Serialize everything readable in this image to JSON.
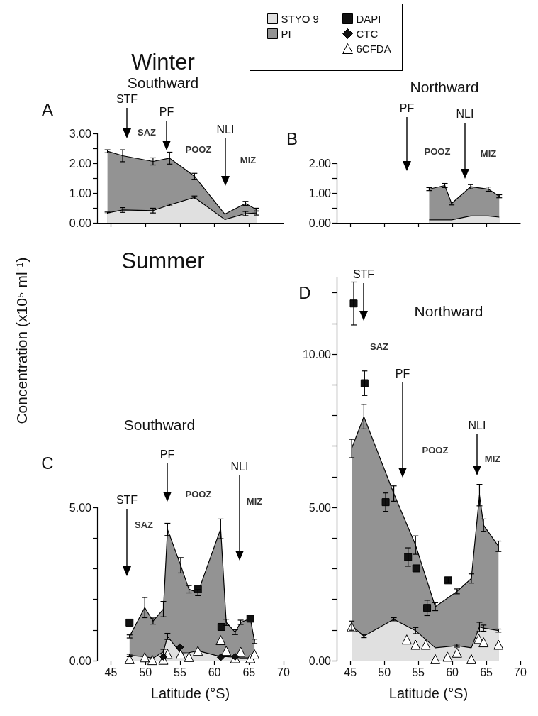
{
  "chart_data": [
    {
      "type": "area",
      "title": "Winter",
      "subtitle": "Southward",
      "ylabel": "Concentration (x10⁵ ml⁻¹)",
      "annotations": [
        "A",
        "STF",
        "PF",
        "NLI",
        "SAZ",
        "POOZ",
        "MIZ"
      ],
      "x": [
        44.5,
        46.7,
        51.1,
        53.5,
        57.1,
        61.5,
        64.5,
        66.1
      ],
      "series": [
        {
          "color": "#e0e0e0",
          "values": [
            0.33,
            0.43,
            0.41,
            0.6,
            0.85,
            0.11,
            0.31,
            0.33
          ],
          "errors": [
            0.03,
            0.08,
            0.08,
            0.03,
            0.05,
            null,
            0.07,
            0.07
          ]
        },
        {
          "color": "#939393",
          "values": [
            2.4,
            2.25,
            2.06,
            2.17,
            1.56,
            0.29,
            0.65,
            0.44
          ],
          "errors": [
            0.05,
            0.2,
            0.12,
            0.2,
            0.1,
            null,
            0.07,
            0.05
          ]
        }
      ],
      "xlim": [
        43,
        70
      ],
      "xticks": [
        45,
        50,
        55,
        60,
        65
      ],
      "ylim": [
        0,
        3
      ],
      "yticks": [
        {
          "value": 0,
          "label": "0.00"
        },
        {
          "value": 0.5,
          "label": null
        },
        {
          "value": 1,
          "label": "1.00"
        },
        {
          "value": 1.5,
          "label": null
        },
        {
          "value": 2,
          "label": "2.00"
        },
        {
          "value": 2.5,
          "label": null
        },
        {
          "value": 3,
          "label": "3.00"
        }
      ],
      "tick_labels": "y"
    },
    {
      "type": "area",
      "subtitle": "Northward",
      "annotations": [
        "B",
        "PF",
        "NLI",
        "POOZ",
        "MIZ"
      ],
      "x": [
        56.6,
        58.9,
        59.9,
        62.7,
        65.3,
        66.9
      ],
      "series": [
        {
          "color": "#e0e0e0",
          "values": [
            0.1,
            0.1,
            0.1,
            0.23,
            0.23,
            0.19
          ]
        },
        {
          "color": "#939393",
          "values": [
            1.13,
            1.25,
            0.65,
            1.21,
            1.13,
            0.89
          ],
          "errors": [
            0.05,
            0.07,
            0.05,
            0.07,
            0.07,
            0.05
          ]
        }
      ],
      "xlim": [
        43,
        70
      ],
      "xticks": [
        45,
        50,
        55,
        60,
        65
      ],
      "ylim": [
        0,
        2
      ],
      "yticks": [
        {
          "value": 0,
          "label": "0.00"
        },
        {
          "value": 0.5,
          "label": null
        },
        {
          "value": 1,
          "label": "1.00"
        },
        {
          "value": 1.5,
          "label": null
        },
        {
          "value": 2,
          "label": "2.00"
        }
      ],
      "tick_labels": "y"
    },
    {
      "type": "area",
      "title": "Summer",
      "subtitle": "Southward",
      "xlabel": "Latitude (°S)",
      "legend": "top",
      "annotations": [
        "C",
        "STF",
        "PF",
        "NLI",
        "SAZ",
        "POOZ",
        "MIZ"
      ],
      "x": [
        47.7,
        49.9,
        51.1,
        52.6,
        53.2,
        55.1,
        56.3,
        57.6,
        60.9,
        61.7,
        63.0,
        63.8,
        65.2,
        65.8
      ],
      "series": [
        {
          "name": "STYO 9",
          "color": "#e0e0e0",
          "values": [
            0.17,
            0.13,
            0.08,
            0.29,
            0.79,
            0.25,
            0.26,
            0.32,
            0.13,
            0.13,
            0.11,
            0.09,
            0.09,
            0.09
          ],
          "errors": [
            0.04,
            null,
            null,
            0.08,
            0.1,
            null,
            null,
            null,
            null,
            null,
            null,
            null,
            null,
            null
          ]
        },
        {
          "name": "PI",
          "color": "#939393",
          "values": [
            0.79,
            1.73,
            1.29,
            1.68,
            4.28,
            3.11,
            2.33,
            2.22,
            4.3,
            1.25,
            0.93,
            1.25,
            1.37,
            0.63
          ],
          "errors": [
            0.05,
            0.33,
            0.1,
            0.25,
            0.2,
            0.25,
            0.12,
            0.1,
            0.32,
            0.1,
            0.08,
            0.07,
            null,
            0.07
          ]
        },
        {
          "name": "DAPI",
          "type": "scatter",
          "marker": "square",
          "color": "#111111",
          "x": [
            47.7,
            57.6,
            61.0,
            65.2
          ],
          "values": [
            1.24,
            2.33,
            1.1,
            1.37
          ]
        },
        {
          "name": "CTC",
          "type": "scatter",
          "marker": "diamond",
          "color": "#111111",
          "x": [
            52.6,
            55.0,
            60.9,
            63.0
          ],
          "values": [
            0.13,
            0.44,
            0.11,
            0.13
          ]
        },
        {
          "name": "6CFDA",
          "type": "scatter",
          "marker": "triangle",
          "color": "#ffffff",
          "x": [
            47.7,
            49.9,
            51.0,
            52.6,
            53.2,
            55.1,
            56.3,
            57.6,
            60.9,
            61.7,
            63.0,
            63.8,
            65.2,
            65.8
          ],
          "values": [
            0.05,
            0.11,
            0.02,
            0.03,
            0.22,
            0.21,
            0.12,
            0.32,
            0.67,
            0.32,
            0.08,
            0.29,
            0.08,
            0.21
          ]
        }
      ],
      "xlim": [
        43,
        70
      ],
      "xticks": [
        45,
        50,
        55,
        60,
        65,
        70
      ],
      "ylim": [
        0,
        5
      ],
      "yticks": [
        {
          "value": 0,
          "label": "0.00"
        },
        {
          "value": 1,
          "label": null
        },
        {
          "value": 2,
          "label": null
        },
        {
          "value": 3,
          "label": null
        },
        {
          "value": 4,
          "label": null
        },
        {
          "value": 5,
          "label": "5.00"
        }
      ]
    },
    {
      "type": "area",
      "subtitle": "Northward",
      "xlabel": "Latitude (°S)",
      "annotations": [
        "D",
        "STF",
        "PF",
        "NLI",
        "SAZ",
        "POOZ",
        "MIZ"
      ],
      "x": [
        45.2,
        47.0,
        51.4,
        54.6,
        57.5,
        60.7,
        62.8,
        64.0,
        64.6,
        66.8
      ],
      "series": [
        {
          "color": "#e0e0e0",
          "values": [
            1.14,
            0.8,
            1.35,
            0.98,
            0.42,
            0.49,
            0.42,
            1.1,
            1.06,
            0.98
          ],
          "errors": [
            0.15,
            0.05,
            0.05,
            0.1,
            null,
            0.05,
            null,
            0.15,
            0.1,
            0.05
          ]
        },
        {
          "color": "#939393",
          "values": [
            6.92,
            7.96,
            5.45,
            3.77,
            1.76,
            2.26,
            2.68,
            5.4,
            4.42,
            3.73
          ],
          "errors": [
            0.3,
            0.4,
            0.25,
            0.3,
            0.13,
            0.08,
            0.15,
            0.35,
            0.2,
            0.17
          ]
        },
        {
          "type": "scatter",
          "marker": "square",
          "color": "#111111",
          "x": [
            45.5,
            47.1,
            50.2,
            53.5,
            54.7,
            56.3,
            59.4
          ],
          "values": [
            11.65,
            9.05,
            5.17,
            3.38,
            3.01,
            1.72,
            2.62
          ],
          "errors": [
            0.7,
            0.4,
            0.3,
            0.3,
            null,
            0.25,
            0.08
          ]
        },
        {
          "type": "scatter",
          "marker": "triangle",
          "color": "#ffffff",
          "x": [
            45.2,
            53.3,
            54.6,
            56.1,
            57.5,
            59.3,
            60.7,
            62.8,
            63.9,
            64.6,
            66.8
          ],
          "values": [
            1.1,
            0.69,
            0.52,
            0.52,
            0.05,
            0.13,
            0.26,
            0.05,
            0.71,
            0.6,
            0.52
          ]
        }
      ],
      "xlim": [
        43,
        70
      ],
      "xticks": [
        45,
        50,
        55,
        60,
        65,
        70
      ],
      "ylim": [
        0,
        12.5
      ],
      "yticks": [
        {
          "value": 0,
          "label": "0.00"
        },
        {
          "value": 1,
          "label": null
        },
        {
          "value": 2,
          "label": null
        },
        {
          "value": 3,
          "label": null
        },
        {
          "value": 4,
          "label": null
        },
        {
          "value": 5,
          "label": "5.00"
        },
        {
          "value": 6,
          "label": null
        },
        {
          "value": 7,
          "label": null
        },
        {
          "value": 8,
          "label": null
        },
        {
          "value": 9,
          "label": null
        },
        {
          "value": 10,
          "label": "10.00"
        },
        {
          "value": 11,
          "label": null
        },
        {
          "value": 12,
          "label": null
        }
      ]
    }
  ]
}
